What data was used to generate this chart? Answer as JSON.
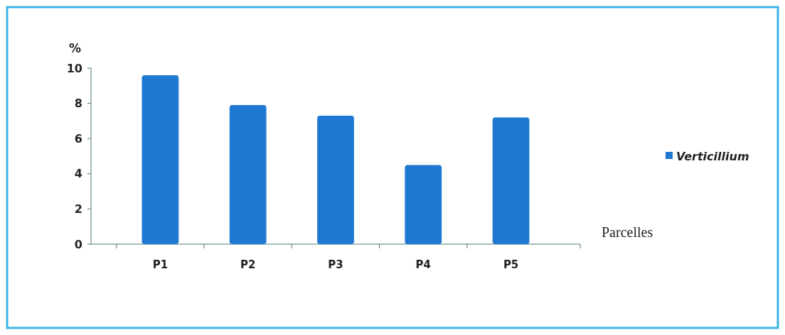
{
  "chart_data": {
    "type": "bar",
    "categories": [
      "P1",
      "P2",
      "P3",
      "P4",
      "P5"
    ],
    "series": [
      {
        "name": "Verticillium",
        "color": "#1f78d1",
        "values": [
          9.6,
          7.9,
          7.3,
          4.5,
          7.2
        ]
      }
    ],
    "ylim": [
      0,
      10
    ],
    "yticks": [
      0,
      2,
      4,
      6,
      8,
      10
    ],
    "ylabel": "%",
    "xlabel": "Parcelles",
    "legend": "right",
    "grid": false
  }
}
